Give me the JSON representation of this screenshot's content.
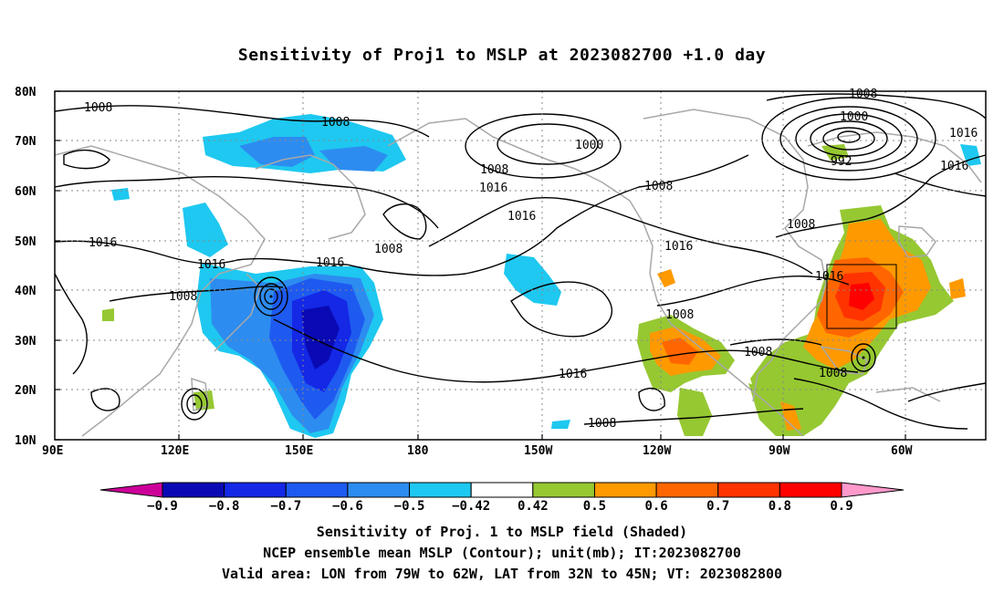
{
  "title": "Sensitivity of Proj1 to MSLP at 2023082700 +1.0 day",
  "lon_ticks": [
    "90E",
    "120E",
    "150E",
    "180",
    "150W",
    "120W",
    "90W",
    "60W"
  ],
  "lat_ticks": [
    "80N",
    "70N",
    "60N",
    "50N",
    "40N",
    "30N",
    "20N",
    "10N"
  ],
  "contour_labels": {
    "c1": "1008",
    "c2": "1008",
    "c3": "1016",
    "c4": "1016",
    "c5": "1008",
    "c6": "1016",
    "c7": "1008",
    "c8": "1016",
    "c9": "1016",
    "c10": "1000",
    "c11": "1008",
    "c12": "1008",
    "c13": "1000",
    "c14": "992",
    "c15": "1016",
    "c16": "1008",
    "c17": "1016",
    "c18": "1008",
    "c19": "1016",
    "c20": "1008",
    "c21": "1008",
    "c22": "1008",
    "c23": "1016",
    "c24": "1008",
    "c25": "1016"
  },
  "colorbar": {
    "labels": [
      "-0.9",
      "-0.8",
      "-0.7",
      "-0.6",
      "-0.5",
      "-0.42",
      "0.42",
      "0.5",
      "0.6",
      "0.7",
      "0.8",
      "0.9"
    ],
    "colors": [
      "#cc0099",
      "#0a0ab4",
      "#1428e6",
      "#1e5af0",
      "#2d8cf0",
      "#1ec8f0",
      "#ffffff",
      "#96c832",
      "#ff9900",
      "#ff6600",
      "#ff3300",
      "#ff0000",
      "#ff99cc"
    ]
  },
  "captions": {
    "line1": "Sensitivity of Proj. 1 to MSLP field (Shaded)",
    "line2": "NCEP ensemble mean MSLP (Contour); unit(mb); IT:2023082700",
    "line3": "Valid area: LON from 79W to 62W, LAT from 32N to 45N; VT: 2023082800"
  }
}
